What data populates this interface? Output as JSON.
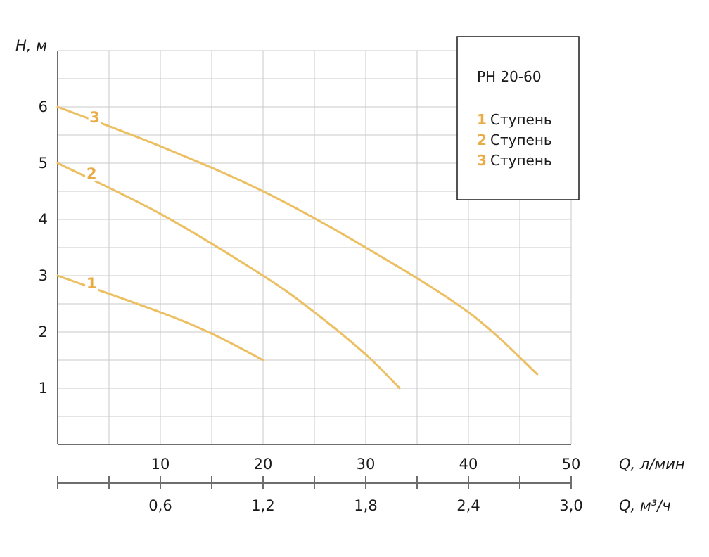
{
  "chart_data": {
    "type": "line",
    "title": "",
    "ylabel": "H, м",
    "xlabel": "Q, л/мин",
    "x2label": "Q, м³/ч",
    "ylim": [
      0,
      7
    ],
    "xlim": [
      0,
      50
    ],
    "y_ticks": [
      "1",
      "2",
      "3",
      "4",
      "5",
      "6"
    ],
    "y_tick_values": [
      1,
      2,
      3,
      4,
      5,
      6
    ],
    "x_ticks": [
      "10",
      "20",
      "30",
      "40",
      "50"
    ],
    "x_tick_values": [
      10,
      20,
      30,
      40,
      50
    ],
    "x2_ticks": [
      "0,6",
      "1,2",
      "1,8",
      "2,4",
      "3,0"
    ],
    "x2_tick_values": [
      10,
      20,
      30,
      40,
      50
    ],
    "grid": true,
    "legend": {
      "title": "PH 20-60",
      "placement": "top-right",
      "items": [
        {
          "num": "1",
          "label": "Ступень"
        },
        {
          "num": "2",
          "label": "Ступень"
        },
        {
          "num": "3",
          "label": "Ступень"
        }
      ]
    },
    "series": [
      {
        "name": "1",
        "label_at": [
          3.3,
          2.8
        ],
        "points": [
          [
            0,
            3.0
          ],
          [
            10,
            2.35
          ],
          [
            15,
            1.97
          ],
          [
            20,
            1.5
          ]
        ]
      },
      {
        "name": "2",
        "label_at": [
          3.3,
          4.75
        ],
        "points": [
          [
            0,
            5.0
          ],
          [
            10,
            4.1
          ],
          [
            20,
            3.0
          ],
          [
            25,
            2.35
          ],
          [
            30,
            1.6
          ],
          [
            33.3,
            1.0
          ]
        ]
      },
      {
        "name": "3",
        "label_at": [
          3.6,
          5.75
        ],
        "points": [
          [
            0,
            6.0
          ],
          [
            10,
            5.3
          ],
          [
            20,
            4.5
          ],
          [
            30,
            3.5
          ],
          [
            40,
            2.35
          ],
          [
            46.7,
            1.25
          ]
        ]
      }
    ]
  },
  "colors": {
    "curve": "#ecbf62",
    "label": "#e8ab45"
  }
}
